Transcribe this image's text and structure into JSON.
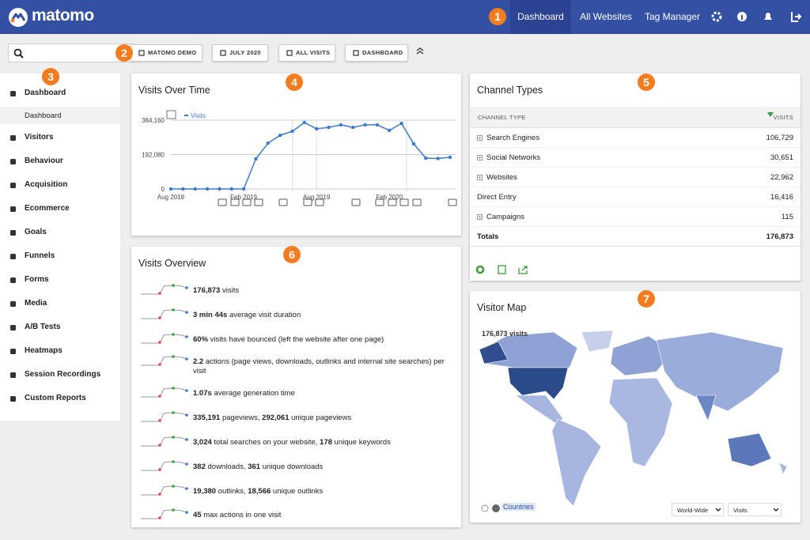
{
  "header": {
    "logo": "matomo",
    "nav": [
      "Dashboard",
      "All Websites",
      "Tag Manager"
    ]
  },
  "callouts": [
    "1",
    "2",
    "3",
    "4",
    "5",
    "6",
    "7"
  ],
  "toolbar": {
    "selectors": [
      "MATOMO DEMO",
      "JULY 2020",
      "ALL VISITS",
      "DASHBOARD"
    ]
  },
  "sidebar": {
    "items": [
      {
        "label": "Dashboard",
        "sub": [
          "Dashboard"
        ]
      },
      {
        "label": "Visitors"
      },
      {
        "label": "Behaviour"
      },
      {
        "label": "Acquisition"
      },
      {
        "label": "Ecommerce"
      },
      {
        "label": "Goals"
      },
      {
        "label": "Funnels"
      },
      {
        "label": "Forms"
      },
      {
        "label": "Media"
      },
      {
        "label": "A/B Tests"
      },
      {
        "label": "Heatmaps"
      },
      {
        "label": "Session Recordings"
      },
      {
        "label": "Custom Reports"
      }
    ]
  },
  "visits_over_time": {
    "type": "line",
    "title": "Visits Over Time",
    "legend": "Visits",
    "color": "#3b7bcd",
    "categories": [
      "Aug 2018",
      null,
      null,
      null,
      null,
      null,
      "Feb 2019",
      null,
      null,
      null,
      null,
      null,
      "Aug 2019",
      null,
      null,
      null,
      null,
      null,
      "Feb 2020",
      null,
      null,
      null,
      null,
      null
    ],
    "values": [
      0,
      0,
      0,
      0,
      0,
      0,
      0,
      168000,
      256000,
      300000,
      322000,
      371000,
      336000,
      344000,
      358000,
      344000,
      358000,
      358000,
      327000,
      366000,
      252000,
      172000,
      170000,
      176873
    ],
    "ylim": [
      0,
      384160
    ],
    "yticks": [
      0,
      {
        "value": 192080,
        "label": "192,080"
      },
      {
        "value": 384160,
        "label": "384,160"
      }
    ],
    "grid": true
  },
  "channel_types": {
    "title": "Channel Types",
    "columns": [
      "CHANNEL TYPE",
      "VISITS"
    ],
    "rows": [
      {
        "label": "Search Engines",
        "visits": "106,729",
        "expandable": true
      },
      {
        "label": "Social Networks",
        "visits": "30,651",
        "expandable": true
      },
      {
        "label": "Websites",
        "visits": "22,962",
        "expandable": true
      },
      {
        "label": "Direct Entry",
        "visits": "16,416",
        "expandable": false
      },
      {
        "label": "Campaigns",
        "visits": "115",
        "expandable": true
      }
    ],
    "totals": {
      "label": "Totals",
      "visits": "176,873"
    }
  },
  "visits_overview": {
    "title": "Visits Overview",
    "rows": [
      [
        {
          "text": "176,873",
          "bold": true
        },
        {
          "text": " visits"
        }
      ],
      [
        {
          "text": "3 min 44s",
          "bold": true
        },
        {
          "text": " average visit duration"
        }
      ],
      [
        {
          "text": "60%",
          "bold": true
        },
        {
          "text": " visits have bounced (left the website after one page)"
        }
      ],
      [
        {
          "text": "2.2",
          "bold": true
        },
        {
          "text": " actions (page views, downloads, outlinks and internal site searches) per visit"
        }
      ],
      [
        {
          "text": "1.07s",
          "bold": true
        },
        {
          "text": " average generation time"
        }
      ],
      [
        {
          "text": "335,191",
          "bold": true
        },
        {
          "text": " pageviews, "
        },
        {
          "text": "292,061",
          "bold": true
        },
        {
          "text": " unique pageviews"
        }
      ],
      [
        {
          "text": "3,024",
          "bold": true
        },
        {
          "text": " total searches on your website, "
        },
        {
          "text": "178",
          "bold": true
        },
        {
          "text": " unique keywords"
        }
      ],
      [
        {
          "text": "382",
          "bold": true
        },
        {
          "text": " downloads, "
        },
        {
          "text": "361",
          "bold": true
        },
        {
          "text": " unique downloads"
        }
      ],
      [
        {
          "text": "19,380",
          "bold": true
        },
        {
          "text": " outlinks, "
        },
        {
          "text": "18,566",
          "bold": true
        },
        {
          "text": " unique outlinks"
        }
      ],
      [
        {
          "text": "45",
          "bold": true
        },
        {
          "text": " max actions in one visit"
        }
      ]
    ]
  },
  "visitor_map": {
    "title": "Visitor Map",
    "total": "176,873 visits",
    "layer": "Countries",
    "region": "World-Wide",
    "metric": "Visits"
  }
}
